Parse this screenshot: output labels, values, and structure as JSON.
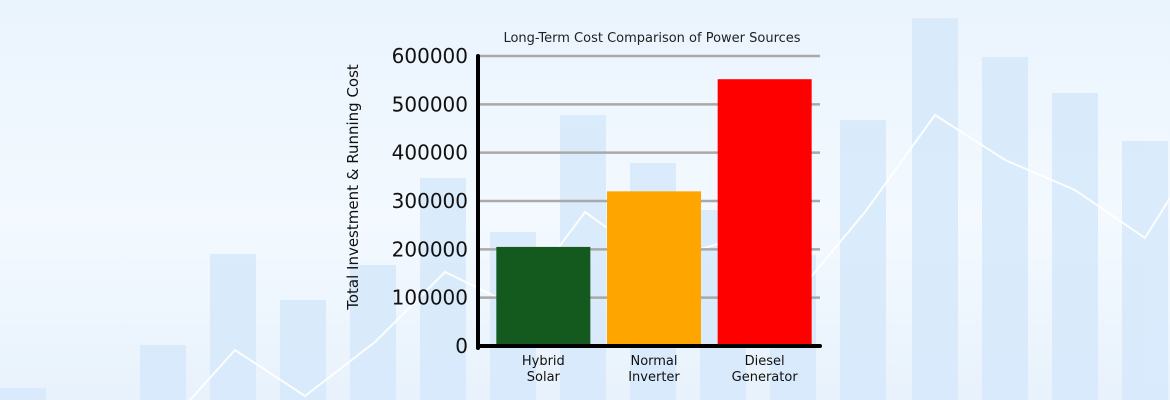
{
  "chart_data": {
    "type": "bar",
    "title": "Long-Term Cost Comparison of Power Sources",
    "xlabel": "",
    "ylabel": "Total Investment & Running Cost",
    "categories": [
      "Hybrid Solar",
      "Normal Inverter",
      "Diesel Generator"
    ],
    "category_lines": [
      [
        "Hybrid",
        "Solar"
      ],
      [
        "Normal",
        "Inverter"
      ],
      [
        "Diesel",
        "Generator"
      ]
    ],
    "values": [
      205000,
      320000,
      552000
    ],
    "bar_colors": [
      "#145a1e",
      "#ffa500",
      "#ff0000"
    ],
    "ylim": [
      0,
      600000
    ],
    "yticks": [
      0,
      100000,
      200000,
      300000,
      400000,
      500000,
      600000
    ],
    "ytick_labels": [
      "0",
      "100000",
      "200000",
      "300000",
      "400000",
      "500000",
      "600000"
    ],
    "grid": true,
    "legend": "none"
  }
}
